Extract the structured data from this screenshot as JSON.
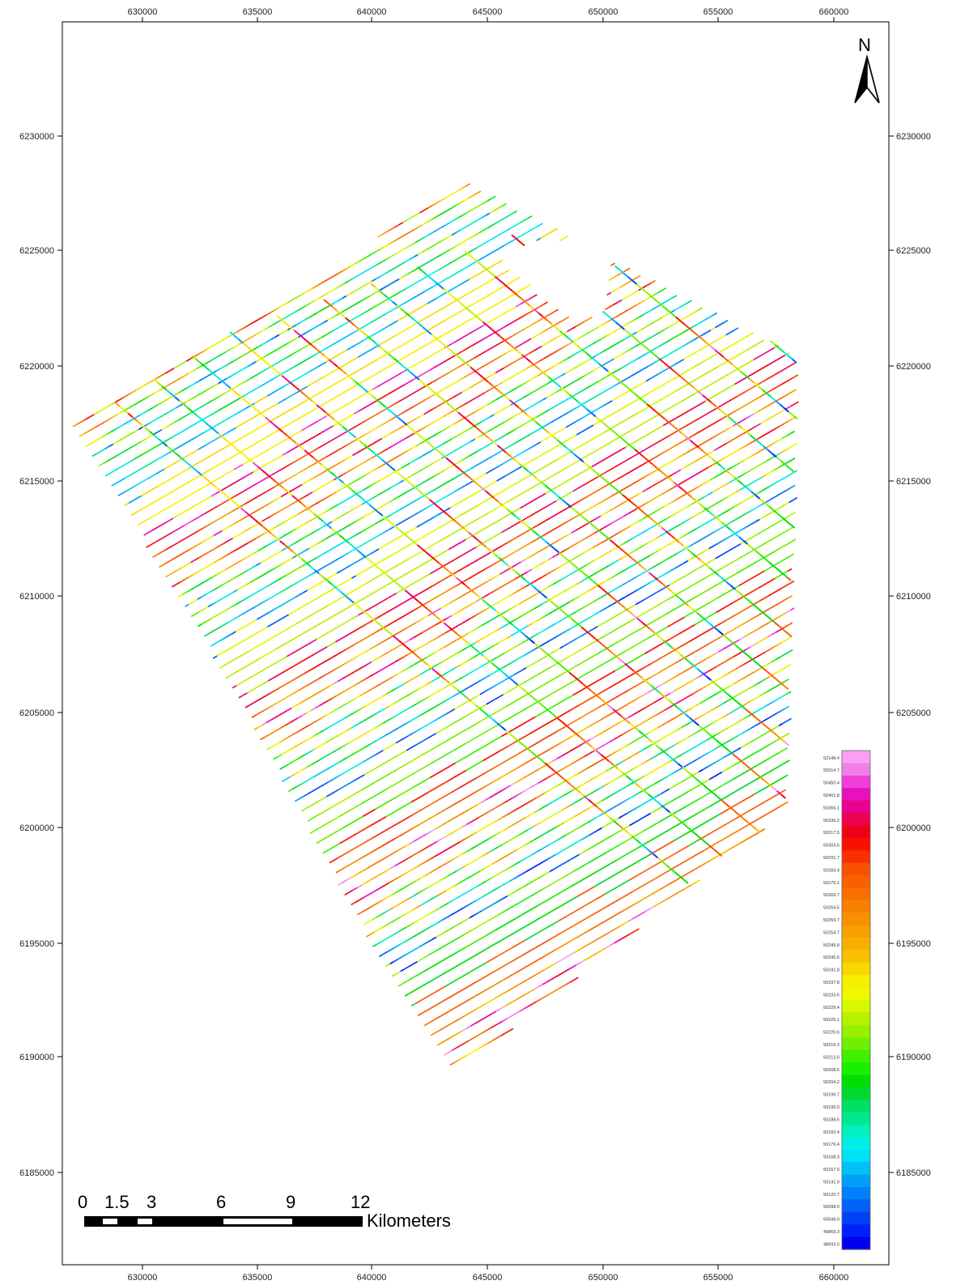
{
  "map": {
    "x_ticks": [
      "630000",
      "635000",
      "640000",
      "645000",
      "650000",
      "655000",
      "660000"
    ],
    "y_ticks": [
      "6230000",
      "6225000",
      "6220000",
      "6215000",
      "6210000",
      "6205000",
      "6200000",
      "6195000",
      "6190000",
      "6185000"
    ],
    "north_arrow": {
      "letter": "N",
      "icon": "north-arrow-icon"
    }
  },
  "scale_bar": {
    "labels": [
      "0",
      "1.5",
      "3",
      "6",
      "9",
      "12"
    ],
    "unit": "Kilometers"
  },
  "legend": {
    "labels": [
      "52148.4",
      "50514.7",
      "50450.4",
      "50401.8",
      "50366.1",
      "50336.2",
      "50317.5",
      "50303.6",
      "50291.7",
      "50283.4",
      "50276.1",
      "50269.7",
      "50264.5",
      "50259.7",
      "50254.7",
      "50249.8",
      "50245.6",
      "50241.8",
      "50237.8",
      "50233.6",
      "50229.4",
      "50225.1",
      "50220.6",
      "50216.3",
      "50212.6",
      "50208.6",
      "50204.2",
      "50199.7",
      "50195.0",
      "50188.5",
      "50183.4",
      "50176.4",
      "50168.3",
      "50157.9",
      "50141.9",
      "50120.7",
      "50098.0",
      "50048.0",
      "49869.3",
      "48693.0"
    ],
    "colors": [
      "#f9a0f0",
      "#f080e8",
      "#ee40d8",
      "#ea10c0",
      "#e80090",
      "#ec0050",
      "#f00018",
      "#f81000",
      "#f83000",
      "#f85000",
      "#f86000",
      "#f87000",
      "#f88000",
      "#f89000",
      "#f8a000",
      "#f8b000",
      "#f8c000",
      "#f8d800",
      "#f8ee00",
      "#f0f800",
      "#d8f800",
      "#b8f000",
      "#98f000",
      "#70f000",
      "#40f000",
      "#18f000",
      "#00e000",
      "#00d830",
      "#00e060",
      "#00e890",
      "#00f0c0",
      "#00f0e8",
      "#00e0f8",
      "#00c0f8",
      "#00a0f8",
      "#0080f8",
      "#0060f8",
      "#0040f8",
      "#0020f8",
      "#0000f0"
    ]
  }
}
